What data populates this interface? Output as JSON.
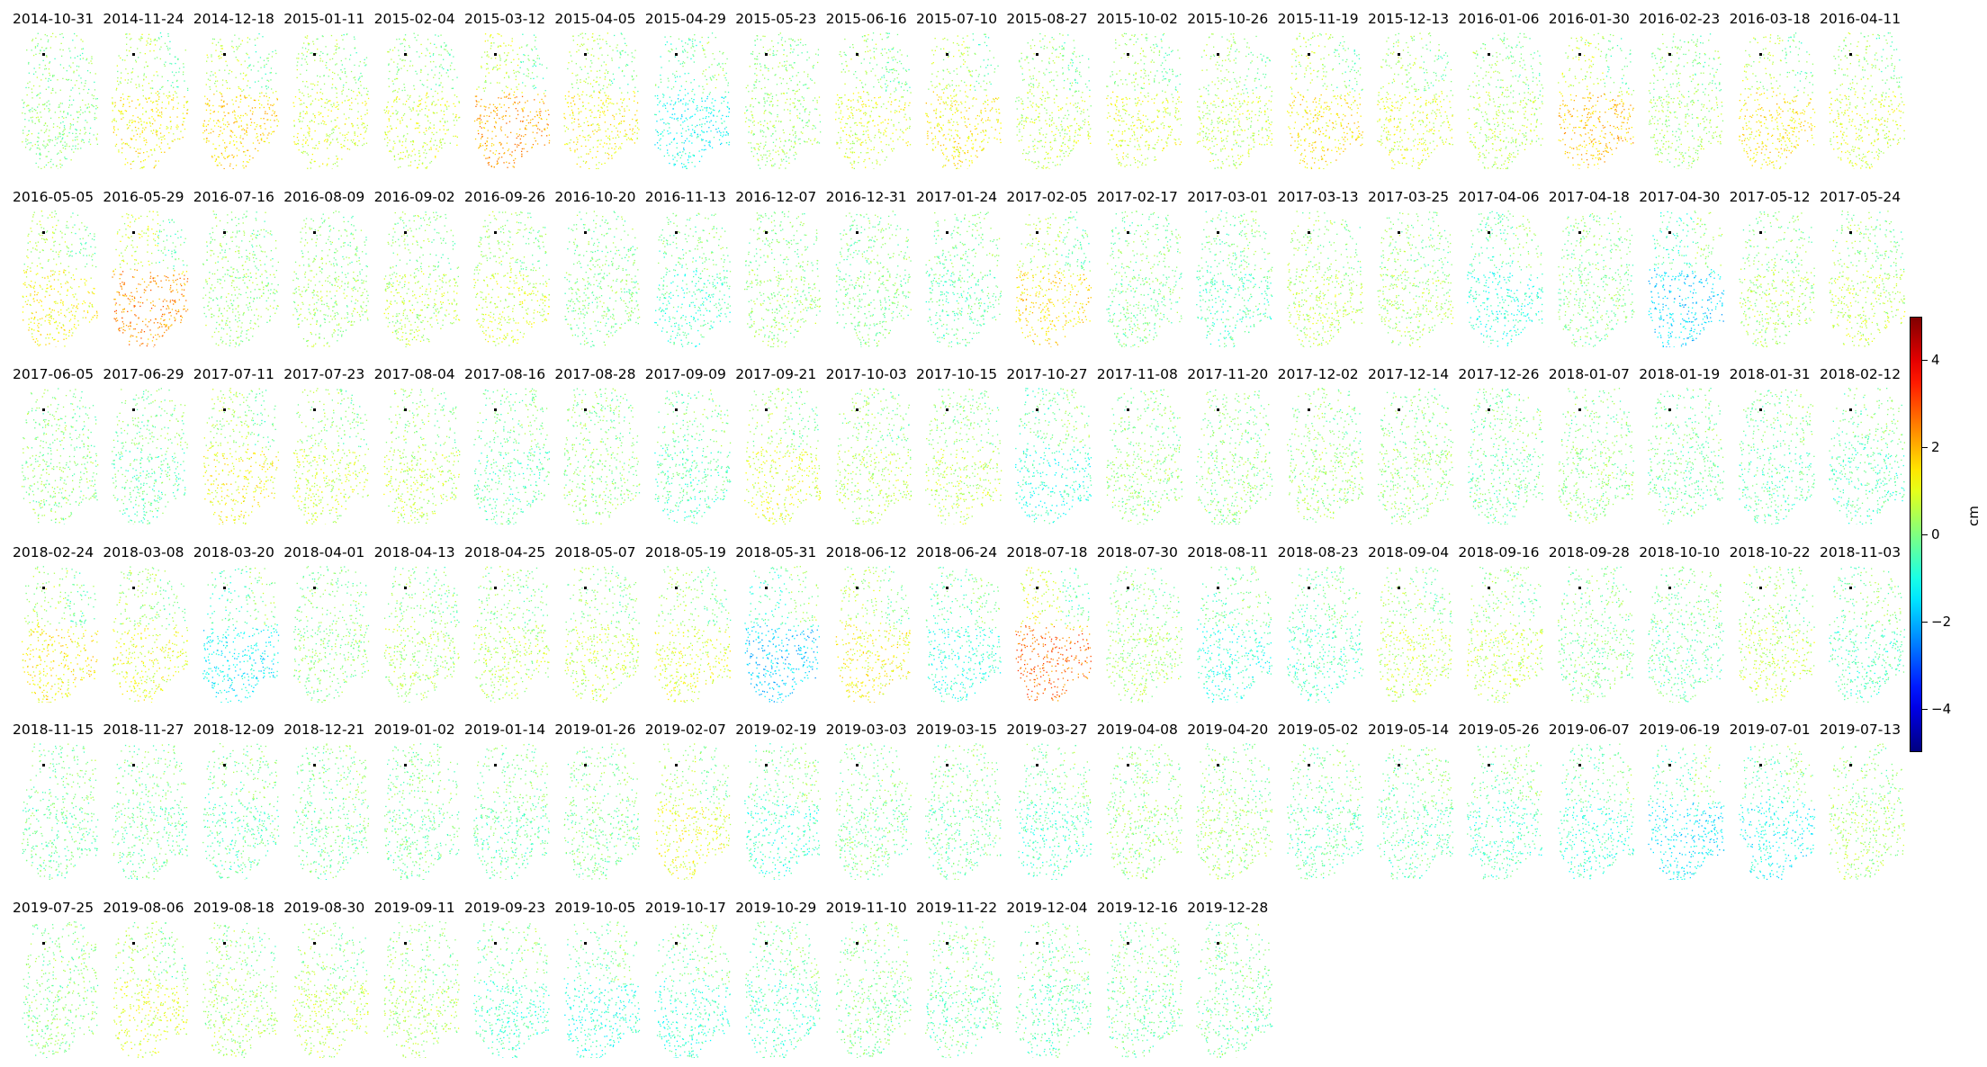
{
  "chart_data": {
    "type": "scatter",
    "colormap": "jet",
    "colorbar": {
      "label": "cm",
      "vmin": -5,
      "vmax": 5,
      "ticks": [
        "4",
        "2",
        "0",
        "−2",
        "−4"
      ],
      "tick_values": [
        4,
        2,
        0,
        -2,
        -4
      ]
    },
    "reference_point_color": "#000000",
    "panels": [
      {
        "date": "2014-10-31",
        "mean": 0.1
      },
      {
        "date": "2014-11-24",
        "mean": 1.3
      },
      {
        "date": "2014-12-18",
        "mean": 1.6
      },
      {
        "date": "2015-01-11",
        "mean": 0.9
      },
      {
        "date": "2015-02-04",
        "mean": 0.8
      },
      {
        "date": "2015-03-12",
        "mean": 2.1
      },
      {
        "date": "2015-04-05",
        "mean": 1.2
      },
      {
        "date": "2015-04-29",
        "mean": -1.1
      },
      {
        "date": "2015-05-23",
        "mean": 0.3
      },
      {
        "date": "2015-06-16",
        "mean": 0.9
      },
      {
        "date": "2015-07-10",
        "mean": 1.3
      },
      {
        "date": "2015-08-27",
        "mean": 0.6
      },
      {
        "date": "2015-10-02",
        "mean": 0.9
      },
      {
        "date": "2015-10-26",
        "mean": 0.6
      },
      {
        "date": "2015-11-19",
        "mean": 1.4
      },
      {
        "date": "2015-12-13",
        "mean": 0.9
      },
      {
        "date": "2016-01-06",
        "mean": 0.5
      },
      {
        "date": "2016-01-30",
        "mean": 1.8
      },
      {
        "date": "2016-02-23",
        "mean": 0.3
      },
      {
        "date": "2016-03-18",
        "mean": 1.4
      },
      {
        "date": "2016-04-11",
        "mean": 0.9
      },
      {
        "date": "2016-05-05",
        "mean": 1.2
      },
      {
        "date": "2016-05-29",
        "mean": 2.3
      },
      {
        "date": "2016-07-16",
        "mean": 0.2
      },
      {
        "date": "2016-08-09",
        "mean": 0.3
      },
      {
        "date": "2016-09-02",
        "mean": 0.5
      },
      {
        "date": "2016-09-26",
        "mean": 0.8
      },
      {
        "date": "2016-10-20",
        "mean": 0.0
      },
      {
        "date": "2016-11-13",
        "mean": -0.6
      },
      {
        "date": "2016-12-07",
        "mean": 0.2
      },
      {
        "date": "2016-12-31",
        "mean": 0.0
      },
      {
        "date": "2017-01-24",
        "mean": -0.3
      },
      {
        "date": "2017-02-05",
        "mean": 1.5
      },
      {
        "date": "2017-02-17",
        "mean": -0.1
      },
      {
        "date": "2017-03-01",
        "mean": -0.5
      },
      {
        "date": "2017-03-13",
        "mean": 0.5
      },
      {
        "date": "2017-03-25",
        "mean": 0.4
      },
      {
        "date": "2017-04-06",
        "mean": -0.9
      },
      {
        "date": "2017-04-18",
        "mean": 0.0
      },
      {
        "date": "2017-04-30",
        "mean": -1.6
      },
      {
        "date": "2017-05-12",
        "mean": 0.4
      },
      {
        "date": "2017-05-24",
        "mean": 0.6
      },
      {
        "date": "2017-06-05",
        "mean": 0.1
      },
      {
        "date": "2017-06-29",
        "mean": -0.3
      },
      {
        "date": "2017-07-11",
        "mean": 1.2
      },
      {
        "date": "2017-07-23",
        "mean": 0.7
      },
      {
        "date": "2017-08-04",
        "mean": 0.6
      },
      {
        "date": "2017-08-16",
        "mean": -0.4
      },
      {
        "date": "2017-08-28",
        "mean": 0.2
      },
      {
        "date": "2017-09-09",
        "mean": -0.5
      },
      {
        "date": "2017-09-21",
        "mean": 0.9
      },
      {
        "date": "2017-10-03",
        "mean": 0.5
      },
      {
        "date": "2017-10-15",
        "mean": 0.6
      },
      {
        "date": "2017-10-27",
        "mean": -0.9
      },
      {
        "date": "2017-11-08",
        "mean": 0.2
      },
      {
        "date": "2017-11-20",
        "mean": 0.1
      },
      {
        "date": "2017-12-02",
        "mean": 0.3
      },
      {
        "date": "2017-12-14",
        "mean": 0.2
      },
      {
        "date": "2017-12-26",
        "mean": -0.2
      },
      {
        "date": "2018-01-07",
        "mean": 0.1
      },
      {
        "date": "2018-01-19",
        "mean": -0.2
      },
      {
        "date": "2018-01-31",
        "mean": -0.4
      },
      {
        "date": "2018-02-12",
        "mean": -0.5
      },
      {
        "date": "2018-02-24",
        "mean": 1.3
      },
      {
        "date": "2018-03-08",
        "mean": 1.0
      },
      {
        "date": "2018-03-20",
        "mean": -1.3
      },
      {
        "date": "2018-04-01",
        "mean": 0.1
      },
      {
        "date": "2018-04-13",
        "mean": 0.4
      },
      {
        "date": "2018-04-25",
        "mean": 0.5
      },
      {
        "date": "2018-05-07",
        "mean": 0.6
      },
      {
        "date": "2018-05-19",
        "mean": 0.9
      },
      {
        "date": "2018-05-31",
        "mean": -1.7
      },
      {
        "date": "2018-06-12",
        "mean": 1.2
      },
      {
        "date": "2018-06-24",
        "mean": -0.9
      },
      {
        "date": "2018-07-18",
        "mean": 2.7
      },
      {
        "date": "2018-07-30",
        "mean": 0.3
      },
      {
        "date": "2018-08-11",
        "mean": -0.9
      },
      {
        "date": "2018-08-23",
        "mean": -0.6
      },
      {
        "date": "2018-09-04",
        "mean": 0.7
      },
      {
        "date": "2018-09-16",
        "mean": 0.6
      },
      {
        "date": "2018-09-28",
        "mean": 0.0
      },
      {
        "date": "2018-10-10",
        "mean": -0.3
      },
      {
        "date": "2018-10-22",
        "mean": 0.6
      },
      {
        "date": "2018-11-03",
        "mean": -0.5
      },
      {
        "date": "2018-11-15",
        "mean": -0.2
      },
      {
        "date": "2018-11-27",
        "mean": -0.2
      },
      {
        "date": "2018-12-09",
        "mean": -0.4
      },
      {
        "date": "2018-12-21",
        "mean": -0.2
      },
      {
        "date": "2019-01-02",
        "mean": -0.2
      },
      {
        "date": "2019-01-14",
        "mean": -0.3
      },
      {
        "date": "2019-01-26",
        "mean": -0.1
      },
      {
        "date": "2019-02-07",
        "mean": 1.0
      },
      {
        "date": "2019-02-19",
        "mean": -0.7
      },
      {
        "date": "2019-03-03",
        "mean": -0.1
      },
      {
        "date": "2019-03-15",
        "mean": -0.3
      },
      {
        "date": "2019-03-27",
        "mean": -0.6
      },
      {
        "date": "2019-04-08",
        "mean": 0.2
      },
      {
        "date": "2019-04-20",
        "mean": 0.3
      },
      {
        "date": "2019-05-02",
        "mean": -0.4
      },
      {
        "date": "2019-05-14",
        "mean": -0.4
      },
      {
        "date": "2019-05-26",
        "mean": -0.6
      },
      {
        "date": "2019-06-07",
        "mean": -0.8
      },
      {
        "date": "2019-06-19",
        "mean": -1.4
      },
      {
        "date": "2019-07-01",
        "mean": -1.2
      },
      {
        "date": "2019-07-13",
        "mean": 0.4
      },
      {
        "date": "2019-07-25",
        "mean": 0.0
      },
      {
        "date": "2019-08-06",
        "mean": 0.9
      },
      {
        "date": "2019-08-18",
        "mean": 0.3
      },
      {
        "date": "2019-08-30",
        "mean": 0.6
      },
      {
        "date": "2019-09-11",
        "mean": 0.4
      },
      {
        "date": "2019-09-23",
        "mean": -0.6
      },
      {
        "date": "2019-10-05",
        "mean": -0.9
      },
      {
        "date": "2019-10-17",
        "mean": -0.8
      },
      {
        "date": "2019-10-29",
        "mean": -0.6
      },
      {
        "date": "2019-11-10",
        "mean": -0.1
      },
      {
        "date": "2019-11-22",
        "mean": -0.3
      },
      {
        "date": "2019-12-04",
        "mean": -0.4
      },
      {
        "date": "2019-12-16",
        "mean": -0.2
      },
      {
        "date": "2019-12-28",
        "mean": -0.2
      }
    ]
  }
}
